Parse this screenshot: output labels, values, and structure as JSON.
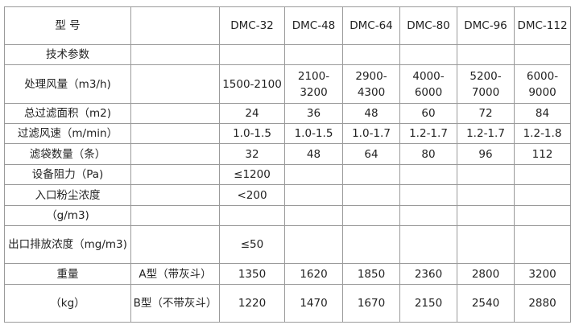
{
  "header": {
    "label": "型 号",
    "models": [
      "DMC-32",
      "DMC-48",
      "DMC-64",
      "DMC-80",
      "DMC-96",
      "DMC-112"
    ]
  },
  "rows": [
    {
      "label": "技术参数",
      "sub": "",
      "values": [
        "",
        "",
        "",
        "",
        "",
        ""
      ]
    },
    {
      "label": "处理风量（m3/h)",
      "sub": "",
      "values": [
        "1500-2100",
        "2100-3200",
        "2900-4300",
        "4000-6000",
        "5200-7000",
        "6000-9000"
      ]
    },
    {
      "label": "总过滤面积（m2)",
      "sub": "",
      "values": [
        "24",
        "36",
        "48",
        "60",
        "72",
        "84"
      ]
    },
    {
      "label": "过滤风速（m/min）",
      "sub": "",
      "values": [
        "1.0-1.5",
        "1.0-1.5",
        "1.0-1.7",
        "1.2-1.7",
        "1.2-1.7",
        "1.2-1.8"
      ]
    },
    {
      "label": "滤袋数量（条）",
      "sub": "",
      "values": [
        "32",
        "48",
        "64",
        "80",
        "96",
        "112"
      ]
    },
    {
      "label": "设备阻力（Pa)",
      "sub": "",
      "values": [
        "≤1200",
        "",
        "",
        "",
        "",
        ""
      ]
    },
    {
      "label": "入口粉尘浓度",
      "sub": "",
      "values": [
        "<200",
        "",
        "",
        "",
        "",
        ""
      ]
    },
    {
      "label": "（g/m3)",
      "sub": "",
      "values": [
        "",
        "",
        "",
        "",
        "",
        ""
      ]
    },
    {
      "label": "出口排放浓度（mg/m3)",
      "sub": "",
      "values": [
        "≤50",
        "",
        "",
        "",
        "",
        ""
      ]
    },
    {
      "label": "重量",
      "sub": "A型（带灰斗）",
      "values": [
        "1350",
        "1620",
        "1850",
        "2360",
        "2800",
        "3200"
      ]
    },
    {
      "label": "（kg）",
      "sub": "B型（不带灰斗）",
      "values": [
        "1220",
        "1470",
        "1670",
        "2150",
        "2540",
        "2880"
      ]
    }
  ]
}
